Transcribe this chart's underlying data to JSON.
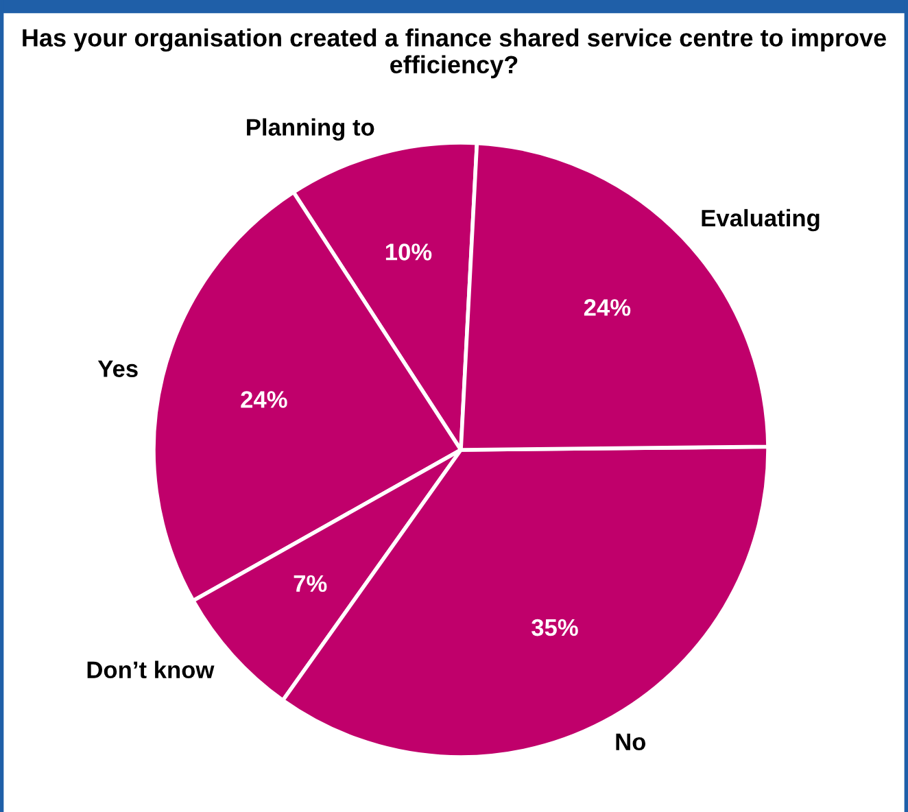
{
  "chart_data": {
    "type": "pie",
    "title": "Has your organisation created a finance shared service centre to improve efficiency?",
    "categories": [
      "Planning to",
      "Yes",
      "Don’t know",
      "No",
      "Evaluating"
    ],
    "values": [
      10,
      24,
      7,
      35,
      24
    ],
    "colors": [
      "#c0006b",
      "#c0006b",
      "#c0006b",
      "#c0006b",
      "#c0006b"
    ],
    "value_labels": [
      "10%",
      "24%",
      "7%",
      "35%",
      "24%"
    ]
  }
}
